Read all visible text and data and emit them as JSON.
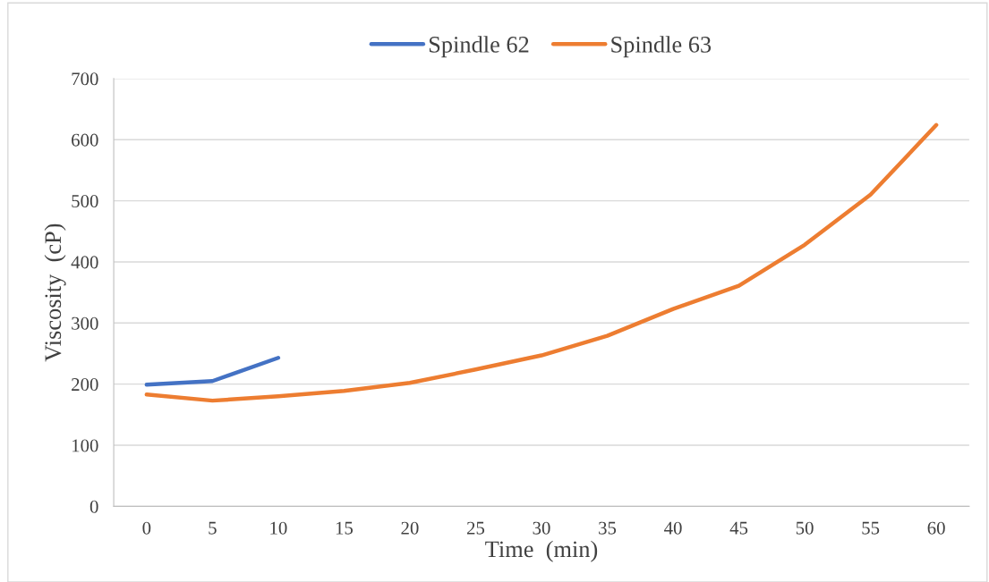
{
  "chart_data": {
    "type": "line",
    "xlabel": "Time  (min)",
    "ylabel": "Viscosity  (cP)",
    "categories": [
      "0",
      "5",
      "10",
      "15",
      "20",
      "25",
      "30",
      "35",
      "40",
      "45",
      "50",
      "55",
      "60"
    ],
    "series": [
      {
        "name": "Spindle 62",
        "color": "#4472c4",
        "values": [
          199,
          205,
          243,
          null,
          null,
          null,
          null,
          null,
          null,
          null,
          null,
          null,
          null
        ]
      },
      {
        "name": "Spindle 63",
        "color": "#ed7d31",
        "values": [
          183,
          173,
          180,
          189,
          202,
          224,
          247,
          279,
          323,
          361,
          428,
          510,
          624
        ]
      }
    ],
    "ylim": [
      0,
      700
    ],
    "yticks": [
      0,
      100,
      200,
      300,
      400,
      500,
      600,
      700
    ],
    "grid": "y",
    "legend": "top",
    "marker": "none",
    "line_style": "solid"
  }
}
